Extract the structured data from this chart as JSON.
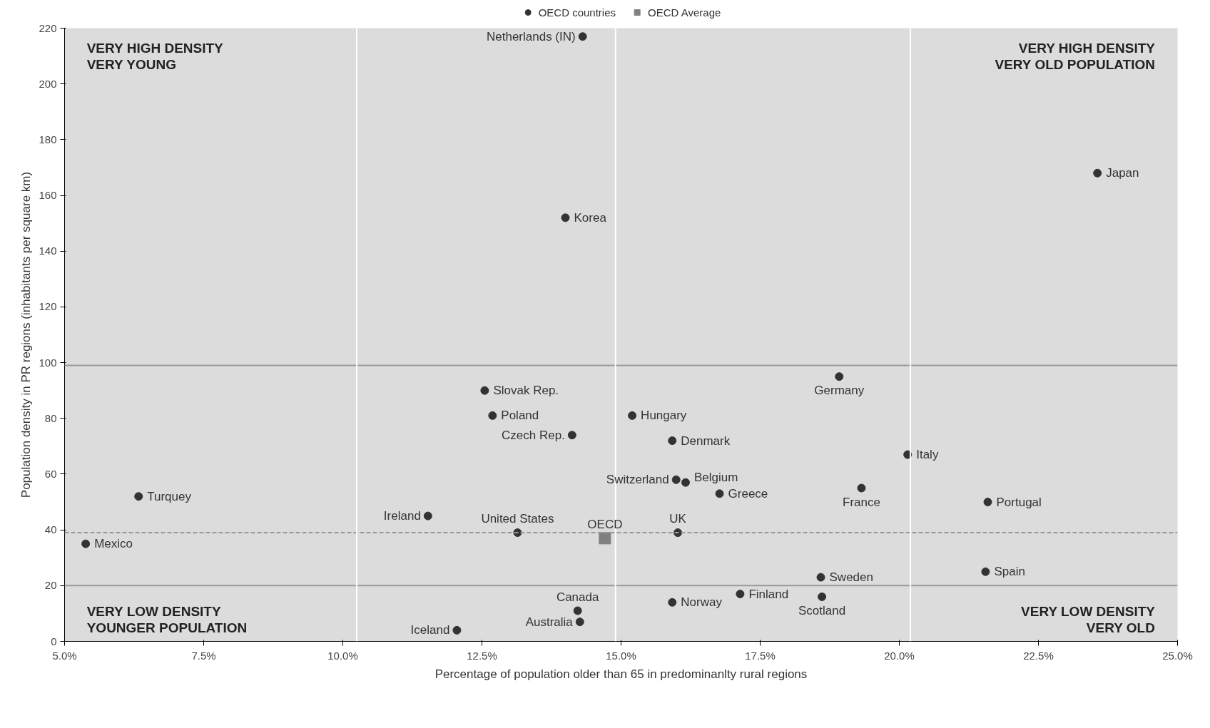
{
  "chart_data": {
    "type": "scatter",
    "xlabel": "Percentage of population older than 65 in predominanlty rural regions",
    "ylabel": "Population density in PR regions (inhabitants per square km)",
    "xlim": [
      5.0,
      25.0
    ],
    "xticks": [
      {
        "value": 5.0,
        "label": "5.0%"
      },
      {
        "value": 7.5,
        "label": "7.5%"
      },
      {
        "value": 10.0,
        "label": "10.0%"
      },
      {
        "value": 12.5,
        "label": "12.5%"
      },
      {
        "value": 15.0,
        "label": "15.0%"
      },
      {
        "value": 17.5,
        "label": "17.5%"
      },
      {
        "value": 20.0,
        "label": "20.0%"
      },
      {
        "value": 22.5,
        "label": "22.5%"
      },
      {
        "value": 25.0,
        "label": "25.0%"
      }
    ],
    "ylim": [
      0,
      220
    ],
    "yticks": [
      0,
      20,
      40,
      60,
      80,
      100,
      120,
      140,
      160,
      180,
      200,
      220
    ],
    "grid": false,
    "legend": "top",
    "series": [
      {
        "name": "OECD countries",
        "color": "#333333",
        "marker": "circle",
        "x": [
          14.31,
          23.56,
          14.0,
          18.92,
          12.55,
          12.69,
          15.2,
          14.12,
          15.92,
          20.15,
          15.99,
          16.16,
          19.32,
          16.77,
          6.33,
          21.59,
          11.53,
          13.14,
          16.02,
          5.38,
          18.59,
          21.55,
          17.14,
          18.61,
          15.92,
          14.22,
          14.26,
          12.05
        ],
        "values": [
          217,
          168,
          152,
          95,
          90,
          81,
          81,
          74,
          72,
          67,
          58,
          57,
          55,
          53,
          52,
          50,
          45,
          39,
          39,
          35,
          23,
          25,
          17,
          16,
          14,
          11,
          7,
          4
        ]
      },
      {
        "name": "OECD Average",
        "color": "#808080",
        "marker": "square",
        "x": [
          14.71
        ],
        "values": [
          37
        ]
      }
    ],
    "ref_lines": [
      {
        "axis": "y",
        "value": 99,
        "color": "#999999",
        "line_style": "solid"
      },
      {
        "axis": "y",
        "value": 39,
        "color": "#999999",
        "line_style": "dashed"
      },
      {
        "axis": "y",
        "value": 20,
        "color": "#999999",
        "line_style": "solid"
      },
      {
        "axis": "x",
        "value": 10.25,
        "color": "#ffffff",
        "line_style": "solid"
      },
      {
        "axis": "x",
        "value": 14.9,
        "color": "#ffffff",
        "line_style": "solid"
      },
      {
        "axis": "x",
        "value": 20.2,
        "color": "#ffffff",
        "line_style": "solid"
      }
    ],
    "annotations": [
      "VERY HIGH DENSITY\nVERY YOUNG",
      "VERY HIGH DENSITY\nVERY OLD POPULATION",
      "VERY LOW DENSITY\nYOUNGER POPULATION",
      "VERY LOW DENSITY\nVERY OLD",
      {
        "text": "Netherlands (IN)",
        "x": 14.31,
        "y": 217
      },
      {
        "text": "Japan",
        "x": 23.56,
        "y": 168
      },
      {
        "text": "Korea",
        "x": 14.0,
        "y": 152
      },
      {
        "text": "Germany",
        "x": 18.92,
        "y": 95
      },
      {
        "text": "Slovak Rep.",
        "x": 12.55,
        "y": 90
      },
      {
        "text": "Poland",
        "x": 12.69,
        "y": 81
      },
      {
        "text": "Hungary",
        "x": 15.2,
        "y": 81
      },
      {
        "text": "Czech Rep.",
        "x": 14.12,
        "y": 74
      },
      {
        "text": "Denmark",
        "x": 15.92,
        "y": 72
      },
      {
        "text": "Italy",
        "x": 20.15,
        "y": 67
      },
      {
        "text": "Switzerland",
        "x": 15.99,
        "y": 58
      },
      {
        "text": "Belgium",
        "x": 16.16,
        "y": 57
      },
      {
        "text": "France",
        "x": 19.32,
        "y": 55
      },
      {
        "text": "Greece",
        "x": 16.77,
        "y": 53
      },
      {
        "text": "Turquey",
        "x": 6.33,
        "y": 52
      },
      {
        "text": "Portugal",
        "x": 21.59,
        "y": 50
      },
      {
        "text": "Ireland",
        "x": 11.53,
        "y": 45
      },
      {
        "text": "United States",
        "x": 13.14,
        "y": 39
      },
      {
        "text": "UK",
        "x": 16.02,
        "y": 39
      },
      {
        "text": "Mexico",
        "x": 5.38,
        "y": 35
      },
      {
        "text": "Sweden",
        "x": 18.59,
        "y": 23
      },
      {
        "text": "Spain",
        "x": 21.55,
        "y": 25
      },
      {
        "text": "Finland",
        "x": 17.14,
        "y": 17
      },
      {
        "text": "Scotland",
        "x": 18.61,
        "y": 16
      },
      {
        "text": "Norway",
        "x": 15.92,
        "y": 14
      },
      {
        "text": "Canada",
        "x": 14.22,
        "y": 11
      },
      {
        "text": "Australia",
        "x": 14.26,
        "y": 7
      },
      {
        "text": "Iceland",
        "x": 12.05,
        "y": 4
      },
      {
        "text": "OECD",
        "x": 14.71,
        "y": 37
      }
    ]
  }
}
